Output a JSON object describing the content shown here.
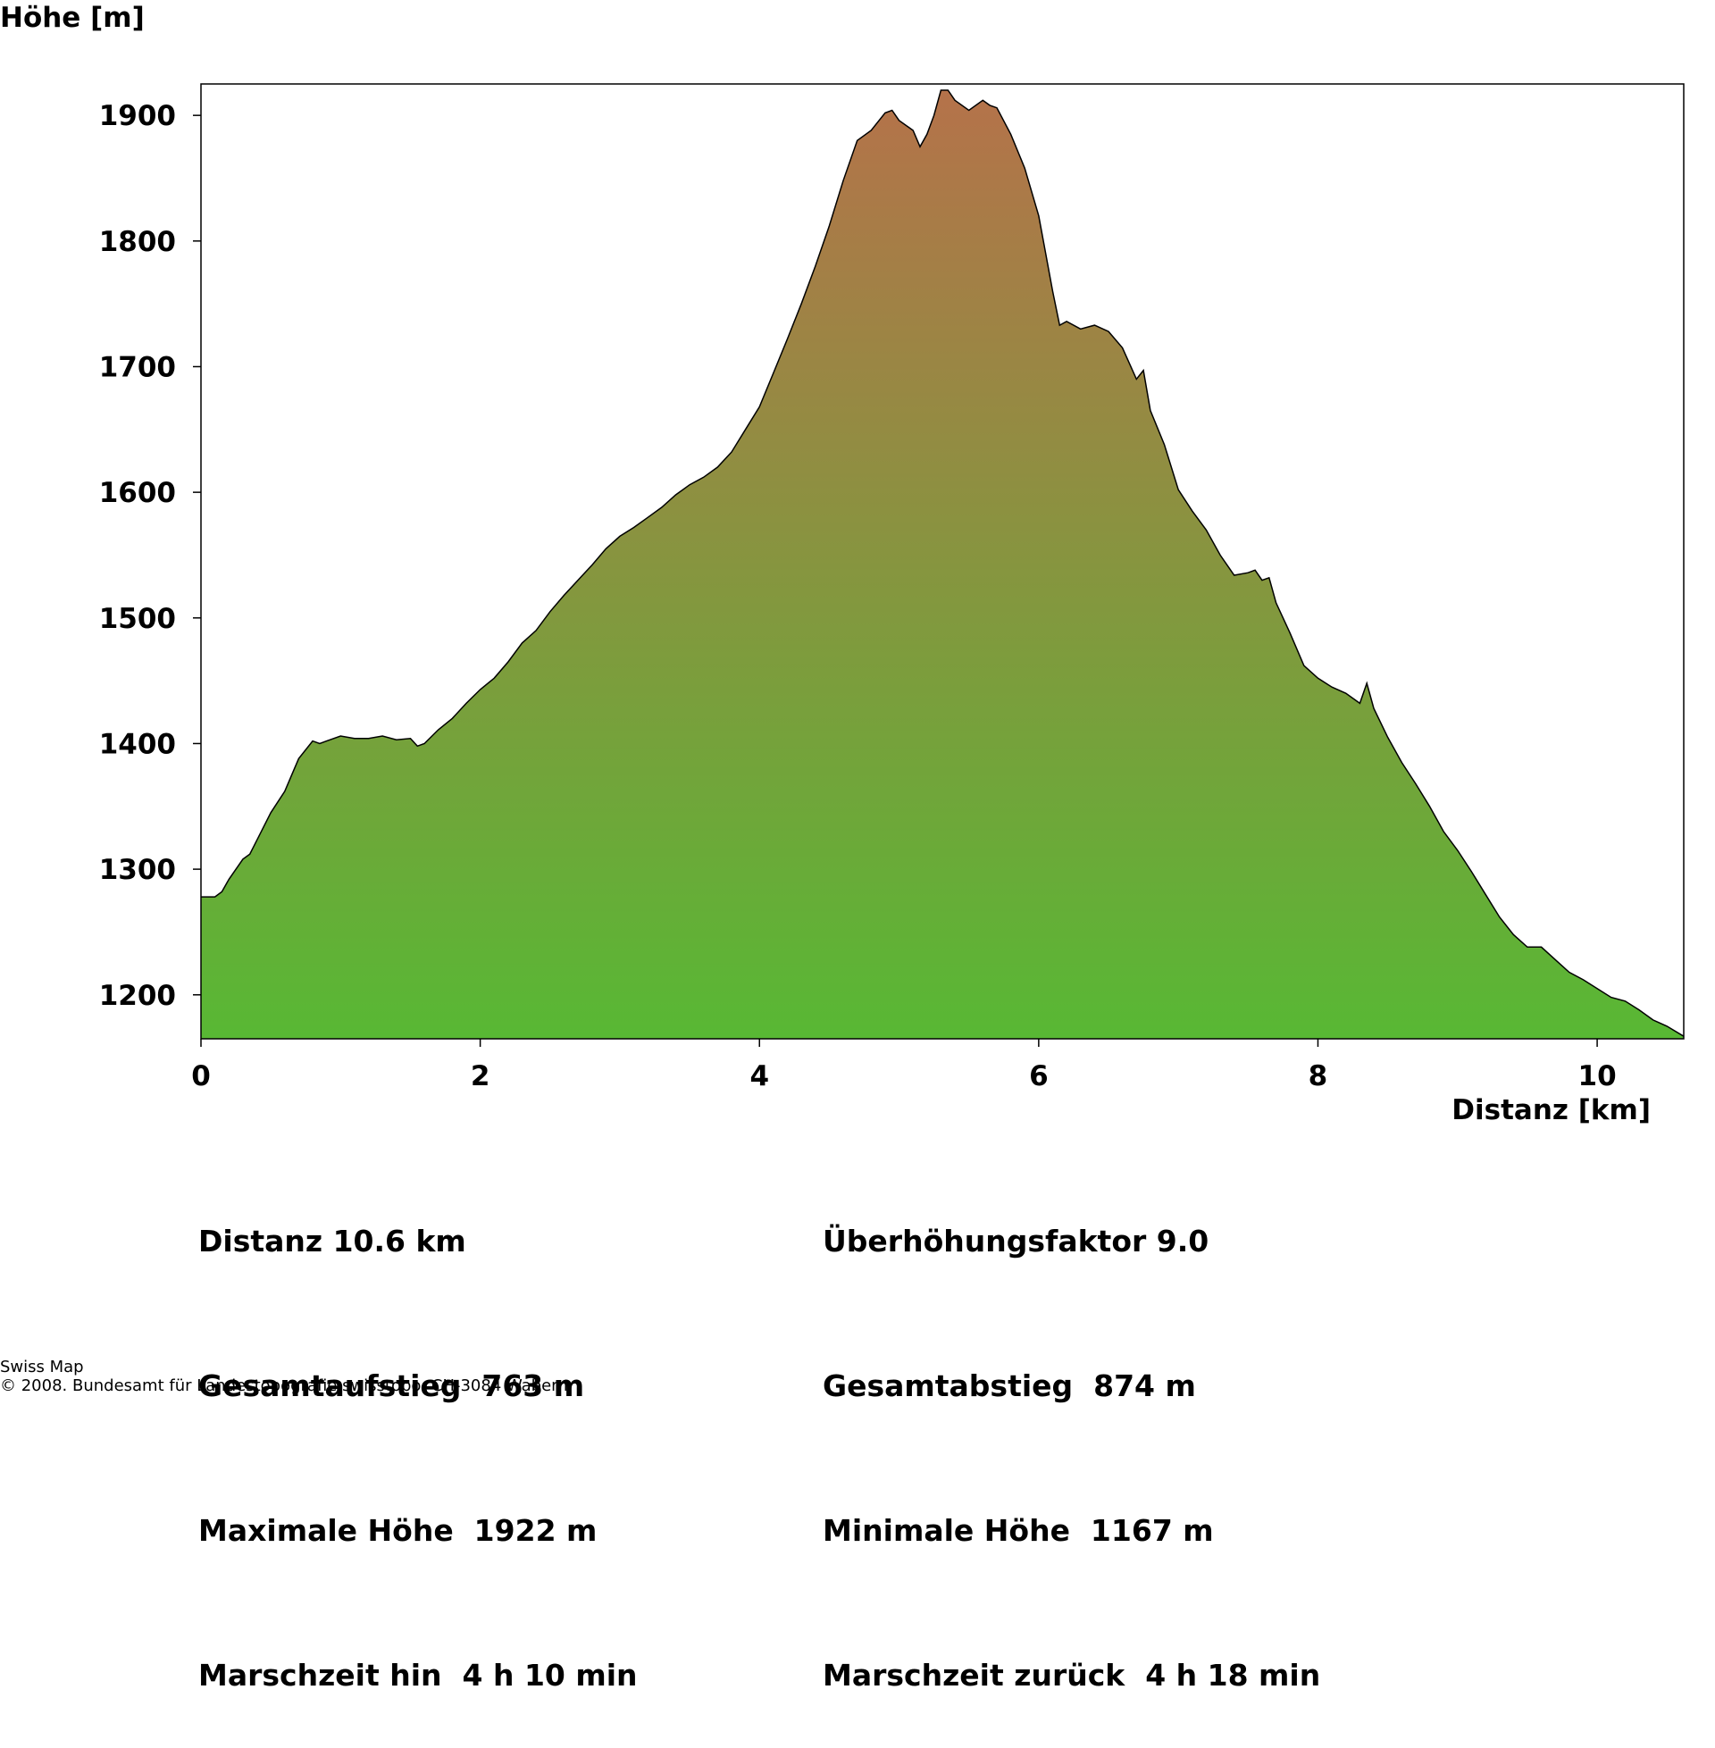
{
  "chart_data": {
    "type": "area",
    "ylabel": "Höhe [m]",
    "xlabel": "Distanz [km]",
    "xlim": [
      0,
      10.62
    ],
    "ylim": [
      1165,
      1925
    ],
    "xticks": [
      0,
      2,
      4,
      6,
      8,
      10
    ],
    "yticks": [
      1200,
      1300,
      1400,
      1500,
      1600,
      1700,
      1800,
      1900
    ],
    "colors": {
      "top": "#b5724a",
      "bottom": "#58b834",
      "line": "#000000"
    },
    "x": [
      0,
      0.1,
      0.15,
      0.2,
      0.3,
      0.35,
      0.4,
      0.5,
      0.6,
      0.65,
      0.7,
      0.8,
      0.85,
      0.9,
      1.0,
      1.1,
      1.2,
      1.3,
      1.4,
      1.5,
      1.55,
      1.6,
      1.7,
      1.8,
      1.9,
      2.0,
      2.1,
      2.2,
      2.3,
      2.4,
      2.5,
      2.6,
      2.7,
      2.8,
      2.9,
      3.0,
      3.1,
      3.2,
      3.3,
      3.4,
      3.5,
      3.6,
      3.7,
      3.8,
      3.9,
      4.0,
      4.1,
      4.2,
      4.3,
      4.4,
      4.5,
      4.6,
      4.7,
      4.8,
      4.9,
      4.95,
      5.0,
      5.1,
      5.15,
      5.2,
      5.25,
      5.3,
      5.35,
      5.4,
      5.5,
      5.6,
      5.65,
      5.7,
      5.8,
      5.9,
      6.0,
      6.1,
      6.15,
      6.2,
      6.3,
      6.4,
      6.5,
      6.6,
      6.7,
      6.75,
      6.8,
      6.9,
      7.0,
      7.1,
      7.2,
      7.3,
      7.4,
      7.5,
      7.55,
      7.6,
      7.65,
      7.7,
      7.8,
      7.9,
      8.0,
      8.1,
      8.2,
      8.3,
      8.35,
      8.4,
      8.5,
      8.6,
      8.7,
      8.8,
      8.9,
      9.0,
      9.1,
      9.2,
      9.3,
      9.4,
      9.5,
      9.6,
      9.7,
      9.8,
      9.9,
      10.0,
      10.1,
      10.2,
      10.3,
      10.4,
      10.5,
      10.62
    ],
    "y": [
      1278,
      1278,
      1282,
      1292,
      1308,
      1312,
      1323,
      1345,
      1362,
      1375,
      1388,
      1402,
      1400,
      1402,
      1406,
      1404,
      1404,
      1406,
      1403,
      1404,
      1398,
      1400,
      1411,
      1420,
      1432,
      1443,
      1452,
      1465,
      1480,
      1490,
      1505,
      1518,
      1530,
      1542,
      1555,
      1565,
      1572,
      1580,
      1588,
      1598,
      1606,
      1612,
      1620,
      1632,
      1650,
      1668,
      1695,
      1722,
      1750,
      1780,
      1812,
      1848,
      1880,
      1888,
      1902,
      1904,
      1896,
      1888,
      1875,
      1885,
      1900,
      1920,
      1920,
      1912,
      1904,
      1912,
      1908,
      1906,
      1885,
      1858,
      1820,
      1760,
      1733,
      1736,
      1730,
      1733,
      1728,
      1715,
      1690,
      1697,
      1665,
      1638,
      1602,
      1585,
      1570,
      1550,
      1534,
      1536,
      1538,
      1530,
      1532,
      1512,
      1488,
      1462,
      1452,
      1445,
      1440,
      1432,
      1448,
      1428,
      1405,
      1385,
      1368,
      1350,
      1330,
      1315,
      1298,
      1280,
      1262,
      1248,
      1238,
      1238,
      1228,
      1218,
      1212,
      1205,
      1198,
      1195,
      1188,
      1180,
      1175,
      1167
    ]
  },
  "stats": {
    "left": [
      "Distanz 10.6 km",
      "Gesamtaufstieg  763 m",
      "Maximale Höhe  1922 m",
      "Marschzeit hin  4 h 10 min"
    ],
    "right": [
      "Überhöhungsfaktor 9.0",
      "Gesamtabstieg  874 m",
      "Minimale Höhe  1167 m",
      "Marschzeit zurück  4 h 18 min"
    ]
  },
  "footer": {
    "line1": "Swiss Map",
    "line2": "© 2008. Bundesamt für Landestopografie swisstopo, CH-3084 Wabern"
  }
}
